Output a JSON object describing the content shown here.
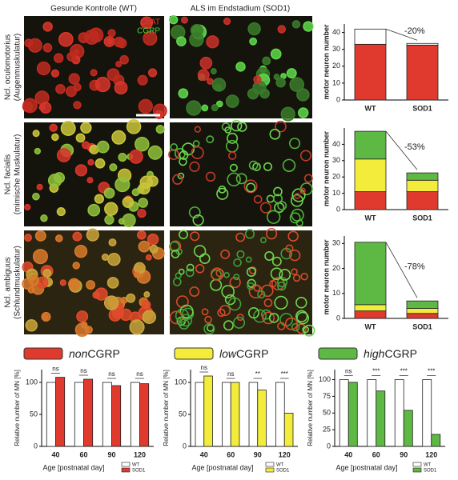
{
  "header": {
    "columns": [
      "Gesunde Kontrolle (WT)",
      "ALS im Endstadium (SOD1)"
    ]
  },
  "images": {
    "rows": [
      {
        "label": "Ncl. oculomotorius",
        "sublabel": "(Augenmuskulatur)"
      },
      {
        "label": "Ncl. facialis",
        "sublabel": "(mimische Muskulatur)"
      },
      {
        "label": "Ncl. ambiguus",
        "sublabel": "(Schlundmuskulatur)"
      }
    ],
    "stain_labels": [
      {
        "text": "ChAT",
        "color": "#e8392c"
      },
      {
        "text": "CGRP",
        "color": "#4fd13a"
      }
    ]
  },
  "legend": [
    {
      "prefix": "non",
      "suffix": "CGRP",
      "color": "#e03a2e"
    },
    {
      "prefix": "low",
      "suffix": "CGRP",
      "color": "#f4ec3a"
    },
    {
      "prefix": "high",
      "suffix": "CGRP",
      "color": "#5db844"
    }
  ],
  "chart_data": [
    {
      "type": "stacked_bar",
      "y_label": "motor neuron number",
      "categories": [
        "WT",
        "SOD1"
      ],
      "series": [
        {
          "color": "#e03a2e",
          "values": [
            33,
            32.5
          ]
        },
        {
          "color": "#ffffff",
          "values": [
            9,
            1
          ]
        }
      ],
      "ylim": [
        0,
        45
      ],
      "yticks": [
        0,
        10,
        20,
        30,
        40
      ],
      "annotation": "-20%"
    },
    {
      "type": "stacked_bar",
      "y_label": "motor neuron number",
      "categories": [
        "WT",
        "SOD1"
      ],
      "series": [
        {
          "color": "#e03a2e",
          "values": [
            11,
            11
          ]
        },
        {
          "color": "#f4ec3a",
          "values": [
            20,
            7
          ]
        },
        {
          "color": "#5db844",
          "values": [
            17,
            4.5
          ]
        }
      ],
      "ylim": [
        0,
        50
      ],
      "yticks": [
        0,
        10,
        20,
        30,
        40
      ],
      "annotation": "-53%"
    },
    {
      "type": "stacked_bar",
      "y_label": "motor neuron number",
      "categories": [
        "WT",
        "SOD1"
      ],
      "series": [
        {
          "color": "#e03a2e",
          "values": [
            3,
            2
          ]
        },
        {
          "color": "#f4ec3a",
          "values": [
            2.5,
            2
          ]
        },
        {
          "color": "#5db844",
          "values": [
            25,
            3
          ]
        }
      ],
      "ylim": [
        0,
        33
      ],
      "yticks": [
        0,
        10,
        20,
        30
      ],
      "annotation": "-78%"
    },
    {
      "type": "grouped_bar",
      "y_label": "Relative number of MN [%]",
      "x_label": "Age [postnatal day]",
      "categories": [
        "40",
        "60",
        "90",
        "120"
      ],
      "series": [
        {
          "name": "WT",
          "color": "#ffffff",
          "values": [
            100,
            100,
            100,
            100
          ]
        },
        {
          "name": "SOD1",
          "color": "#e03a2e",
          "values": [
            108,
            105,
            95,
            98
          ]
        }
      ],
      "significance": [
        "ns",
        "ns",
        "ns",
        "ns"
      ],
      "ylim": [
        0,
        120
      ],
      "yticks": [
        0,
        50,
        100
      ]
    },
    {
      "type": "grouped_bar",
      "y_label": "Relative number of MN [%]",
      "x_label": "Age [postnatal day]",
      "categories": [
        "40",
        "60",
        "90",
        "120"
      ],
      "series": [
        {
          "name": "WT",
          "color": "#ffffff",
          "values": [
            100,
            100,
            100,
            100
          ]
        },
        {
          "name": "SOD1",
          "color": "#f4ec3a",
          "values": [
            110,
            100,
            88,
            52
          ]
        }
      ],
      "significance": [
        "ns",
        "ns",
        "**",
        "***"
      ],
      "ylim": [
        0,
        120
      ],
      "yticks": [
        0,
        50,
        100
      ]
    },
    {
      "type": "grouped_bar",
      "y_label": "Relative number of MN [%]",
      "x_label": "Age [postnatal day]",
      "categories": [
        "40",
        "60",
        "90",
        "120"
      ],
      "series": [
        {
          "name": "WT",
          "color": "#ffffff",
          "values": [
            100,
            100,
            100,
            100
          ]
        },
        {
          "name": "SOD1",
          "color": "#5db844",
          "values": [
            96,
            83,
            54,
            18
          ]
        }
      ],
      "significance": [
        "ns",
        "***",
        "***",
        "***"
      ],
      "ylim": [
        0,
        115
      ],
      "yticks": [
        0,
        25,
        50,
        75,
        100
      ]
    }
  ]
}
